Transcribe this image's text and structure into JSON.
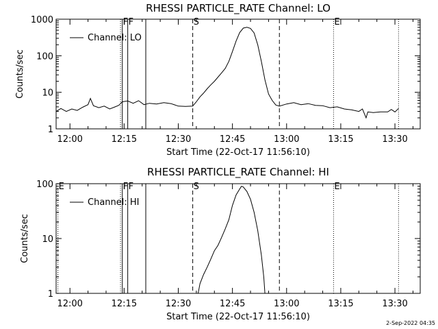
{
  "footer": {
    "date_stamp": "2-Sep-2022 04:35"
  },
  "chart_data": [
    {
      "type": "line",
      "title": "RHESSI PARTICLE_RATE Channel: LO",
      "xlabel": "Start Time (22-Oct-17 11:56:10)",
      "ylabel": "Counts/sec",
      "yscale": "log",
      "ylim": [
        1,
        1000
      ],
      "xlim": [
        "11:56:10",
        "13:37:00"
      ],
      "xticks": [
        "12:00",
        "12:15",
        "12:30",
        "12:45",
        "13:00",
        "13:15",
        "13:30"
      ],
      "yticks": [
        "1",
        "10",
        "100",
        "1000"
      ],
      "legend": {
        "entries": [
          "Channel: LO"
        ],
        "placement": "top-left"
      },
      "markers": [
        {
          "time": "12:14:00",
          "style": "dotted",
          "label": ""
        },
        {
          "time": "12:14:30",
          "style": "solid",
          "label": "F"
        },
        {
          "time": "12:16:00",
          "style": "solid",
          "label": "F"
        },
        {
          "time": "12:21:00",
          "style": "solid",
          "label": ""
        },
        {
          "time": "12:34:00",
          "style": "dashed",
          "label": "S"
        },
        {
          "time": "12:58:00",
          "style": "dashed",
          "label": ""
        },
        {
          "time": "13:13:00",
          "style": "dotted",
          "label": "E"
        },
        {
          "time": "13:31:00",
          "style": "dotted",
          "label": ""
        }
      ],
      "series": [
        {
          "name": "Channel: LO",
          "points": [
            [
              "11:56:10",
              3.0
            ],
            [
              "11:57:30",
              3.6
            ],
            [
              "11:59:00",
              3.0
            ],
            [
              "12:00:30",
              3.5
            ],
            [
              "12:02:00",
              3.2
            ],
            [
              "12:03:30",
              3.9
            ],
            [
              "12:05:00",
              4.6
            ],
            [
              "12:05:40",
              6.8
            ],
            [
              "12:06:30",
              4.3
            ],
            [
              "12:08:00",
              3.8
            ],
            [
              "12:09:30",
              4.2
            ],
            [
              "12:11:00",
              3.5
            ],
            [
              "12:12:30",
              4.0
            ],
            [
              "12:13:30",
              4.4
            ],
            [
              "12:14:30",
              5.5
            ],
            [
              "12:16:00",
              5.8
            ],
            [
              "12:17:30",
              5.0
            ],
            [
              "12:19:00",
              5.9
            ],
            [
              "12:20:30",
              4.6
            ],
            [
              "12:22:00",
              5.0
            ],
            [
              "12:24:00",
              4.8
            ],
            [
              "12:26:00",
              5.2
            ],
            [
              "12:28:00",
              4.9
            ],
            [
              "12:30:00",
              4.2
            ],
            [
              "12:32:00",
              4.1
            ],
            [
              "12:34:00",
              4.2
            ],
            [
              "12:35:00",
              5.5
            ],
            [
              "12:36:00",
              7.5
            ],
            [
              "12:37:00",
              9.5
            ],
            [
              "12:38:00",
              12.5
            ],
            [
              "12:39:00",
              16.0
            ],
            [
              "12:40:00",
              20.0
            ],
            [
              "12:41:00",
              26.0
            ],
            [
              "12:42:00",
              34.0
            ],
            [
              "12:43:00",
              45.0
            ],
            [
              "12:44:00",
              70.0
            ],
            [
              "12:45:00",
              130.0
            ],
            [
              "12:46:00",
              250.0
            ],
            [
              "12:47:00",
              430.0
            ],
            [
              "12:48:00",
              570.0
            ],
            [
              "12:49:00",
              600.0
            ],
            [
              "12:50:00",
              560.0
            ],
            [
              "12:51:00",
              420.0
            ],
            [
              "12:52:00",
              200.0
            ],
            [
              "12:53:00",
              70.0
            ],
            [
              "12:54:00",
              22.0
            ],
            [
              "12:55:00",
              9.0
            ],
            [
              "12:56:00",
              6.0
            ],
            [
              "12:57:00",
              4.5
            ],
            [
              "12:58:00",
              4.2
            ],
            [
              "13:00:00",
              4.8
            ],
            [
              "13:02:00",
              5.2
            ],
            [
              "13:04:00",
              4.6
            ],
            [
              "13:06:00",
              4.9
            ],
            [
              "13:08:00",
              4.4
            ],
            [
              "13:10:00",
              4.3
            ],
            [
              "13:12:00",
              3.8
            ],
            [
              "13:14:00",
              4.0
            ],
            [
              "13:16:00",
              3.5
            ],
            [
              "13:18:00",
              3.3
            ],
            [
              "13:20:00",
              3.0
            ],
            [
              "13:21:00",
              3.5
            ],
            [
              "13:22:00",
              2.0
            ],
            [
              "13:22:30",
              2.9
            ],
            [
              "13:24:00",
              2.8
            ],
            [
              "13:26:00",
              2.9
            ],
            [
              "13:28:00",
              2.9
            ],
            [
              "13:29:00",
              3.4
            ],
            [
              "13:30:00",
              2.9
            ],
            [
              "13:31:00",
              3.6
            ]
          ]
        }
      ]
    },
    {
      "type": "line",
      "title": "RHESSI PARTICLE_RATE Channel: HI",
      "xlabel": "Start Time (22-Oct-17 11:56:10)",
      "ylabel": "Counts/sec",
      "yscale": "log",
      "ylim": [
        1,
        100
      ],
      "xlim": [
        "11:56:10",
        "13:37:00"
      ],
      "xticks": [
        "12:00",
        "12:15",
        "12:30",
        "12:45",
        "13:00",
        "13:15",
        "13:30"
      ],
      "yticks": [
        "1",
        "10",
        "100"
      ],
      "legend": {
        "entries": [
          "Channel: HI"
        ],
        "placement": "top-left"
      },
      "markers": [
        {
          "time": "11:56:40",
          "style": "dotted",
          "label": "E"
        },
        {
          "time": "12:14:00",
          "style": "dotted",
          "label": ""
        },
        {
          "time": "12:14:30",
          "style": "solid",
          "label": "F"
        },
        {
          "time": "12:16:00",
          "style": "solid",
          "label": "F"
        },
        {
          "time": "12:21:00",
          "style": "solid",
          "label": ""
        },
        {
          "time": "12:34:00",
          "style": "dashed",
          "label": "S"
        },
        {
          "time": "12:58:00",
          "style": "dashed",
          "label": ""
        },
        {
          "time": "13:13:00",
          "style": "dotted",
          "label": "E"
        },
        {
          "time": "13:31:00",
          "style": "dotted",
          "label": ""
        }
      ],
      "series": [
        {
          "name": "Channel: HI",
          "points": [
            [
              "12:35:30",
              1.0
            ],
            [
              "12:36:00",
              1.5
            ],
            [
              "12:37:00",
              2.2
            ],
            [
              "12:38:00",
              3.0
            ],
            [
              "12:39:00",
              4.2
            ],
            [
              "12:40:00",
              6.0
            ],
            [
              "12:41:00",
              7.5
            ],
            [
              "12:42:00",
              10.5
            ],
            [
              "12:43:00",
              15.0
            ],
            [
              "12:44:00",
              22.0
            ],
            [
              "12:45:00",
              40.0
            ],
            [
              "12:46:00",
              62.0
            ],
            [
              "12:47:00",
              80.0
            ],
            [
              "12:47:30",
              90.0
            ],
            [
              "12:48:00",
              87.0
            ],
            [
              "12:49:00",
              72.0
            ],
            [
              "12:50:00",
              52.0
            ],
            [
              "12:51:00",
              30.0
            ],
            [
              "12:52:00",
              14.0
            ],
            [
              "12:53:00",
              5.0
            ],
            [
              "12:53:40",
              2.0
            ],
            [
              "12:54:00",
              1.0
            ]
          ]
        }
      ]
    }
  ]
}
